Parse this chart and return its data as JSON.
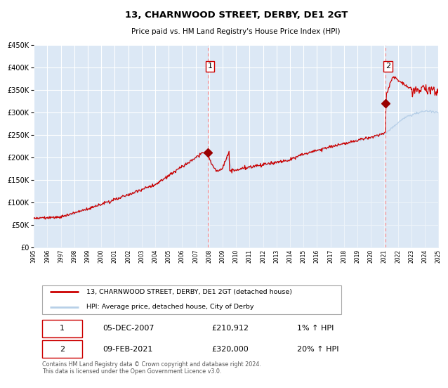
{
  "title": "13, CHARNWOOD STREET, DERBY, DE1 2GT",
  "subtitle": "Price paid vs. HM Land Registry's House Price Index (HPI)",
  "legend_line1": "13, CHARNWOOD STREET, DERBY, DE1 2GT (detached house)",
  "legend_line2": "HPI: Average price, detached house, City of Derby",
  "annotation1_label": "1",
  "annotation1_date": "05-DEC-2007",
  "annotation1_price": "£210,912",
  "annotation1_hpi": "1% ↑ HPI",
  "annotation2_label": "2",
  "annotation2_date": "09-FEB-2021",
  "annotation2_price": "£320,000",
  "annotation2_hpi": "20% ↑ HPI",
  "footer": "Contains HM Land Registry data © Crown copyright and database right 2024.\nThis data is licensed under the Open Government Licence v3.0.",
  "hpi_color": "#b8d0e8",
  "hpi_fill_color": "#dce8f5",
  "price_color": "#cc0000",
  "marker_color": "#990000",
  "vline_color": "#ff8888",
  "bg_color": "#ffffff",
  "plot_bg": "#dce8f5",
  "grid_color": "#ffffff",
  "ylim": [
    0,
    450000
  ],
  "yticks": [
    0,
    50000,
    100000,
    150000,
    200000,
    250000,
    300000,
    350000,
    400000,
    450000
  ],
  "year_start": 1995,
  "year_end": 2025,
  "sale1_year": 2007.92,
  "sale1_price": 210912,
  "sale2_year": 2021.1,
  "sale2_price": 320000
}
